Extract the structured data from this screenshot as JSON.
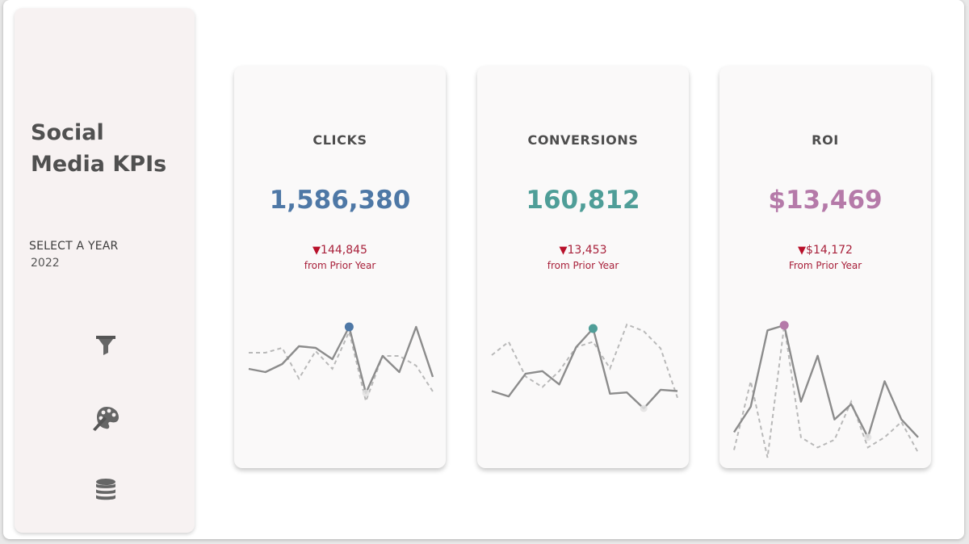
{
  "sidebar": {
    "title": "Social Media KPIs",
    "year_label": "SELECT A YEAR",
    "year_value": "2022",
    "icons": [
      "funnel-icon",
      "palette-icon",
      "database-icon"
    ]
  },
  "cards": [
    {
      "title": "CLICKS",
      "value": "1,586,380",
      "delta_arrow": "▼",
      "delta": "144,845",
      "sub": "from Prior Year",
      "color": "#4e78a6",
      "current": [
        20,
        18,
        23,
        34,
        33,
        26,
        46,
        5,
        28,
        18,
        46,
        15
      ],
      "prior": [
        30,
        30,
        33,
        14,
        31,
        20,
        43,
        0,
        28,
        28,
        22,
        6
      ],
      "max_index": 6,
      "min_index": 7
    },
    {
      "title": "CONVERSIONS",
      "value": "160,812",
      "delta_arrow": "▼",
      "delta": "13,453",
      "sub": "from Prior Year",
      "color": "#4f9e98",
      "current": [
        15,
        11,
        28,
        30,
        20,
        48,
        62,
        13,
        14,
        2,
        16,
        15
      ],
      "prior": [
        42,
        52,
        26,
        18,
        30,
        48,
        52,
        32,
        65,
        60,
        47,
        10
      ],
      "max_index": 6,
      "min_index": 9
    },
    {
      "title": "ROI",
      "value": "$13,469",
      "delta_arrow": "▼",
      "delta": "$14,172",
      "sub": "From Prior Year",
      "color": "#b57aa9",
      "current": [
        10,
        20,
        50,
        52,
        22,
        40,
        15,
        21,
        8,
        30,
        15,
        8
      ],
      "prior": [
        3,
        30,
        0,
        52,
        8,
        4,
        7,
        22,
        4,
        8,
        14,
        2
      ],
      "max_index": 3,
      "min_index": 8
    }
  ]
}
